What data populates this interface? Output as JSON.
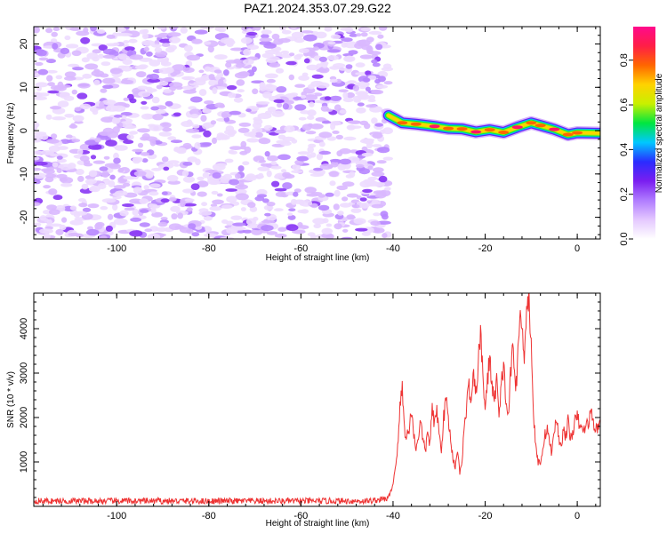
{
  "chart_data": [
    {
      "type": "heatmap",
      "title": "PAZ1.2024.353.07.29.G22",
      "xlabel": "Height of straight line (km)",
      "ylabel": "Frequency (Hz)",
      "xlim": [
        -118,
        5
      ],
      "ylim": [
        -25,
        24
      ],
      "x_ticks": [
        "-100",
        "-80",
        "-60",
        "-40",
        "-20",
        "0"
      ],
      "y_ticks": [
        "-20",
        "-10",
        "0",
        "10",
        "20"
      ],
      "colorbar": {
        "label": "Normalized spectral amplitude",
        "range": [
          0,
          0.95
        ],
        "ticks": [
          "0.0",
          "0.2",
          "0.4",
          "0.6",
          "0.8"
        ]
      },
      "colormap": [
        "#ffffff",
        "#e4c8ff",
        "#b07cff",
        "#7a1ef0",
        "#2a2cff",
        "#00c8ff",
        "#00e640",
        "#c8f000",
        "#ffd200",
        "#ff6600",
        "#ff1e46",
        "#ff0a8c"
      ],
      "noise_region": {
        "x_range": [
          -118,
          -41
        ],
        "amplitude": "0.0-0.25"
      },
      "signal_ridge": {
        "x": [
          -41,
          -38,
          -35,
          -31,
          -28,
          -25,
          -22,
          -19,
          -16,
          -13,
          -10,
          -8,
          -5,
          -2,
          0,
          5
        ],
        "frequency": [
          3.5,
          1.8,
          1.5,
          1.0,
          0.5,
          0.4,
          -0.3,
          0.2,
          -0.4,
          0.8,
          1.8,
          1.2,
          0.3,
          -0.9,
          -0.5,
          -0.6
        ],
        "peak_amplitude": 0.9
      },
      "grid": false
    },
    {
      "type": "line",
      "title": "",
      "xlabel": "Height of straight line (km)",
      "ylabel": "SNR (10 * v/v)",
      "xlim": [
        -118,
        5
      ],
      "ylim": [
        0,
        4800
      ],
      "x_ticks": [
        "-100",
        "-80",
        "-60",
        "-40",
        "-20",
        "0"
      ],
      "y_ticks": [
        "1000",
        "2000",
        "3000",
        "4000"
      ],
      "color": "#ee3333",
      "grid": false,
      "series": [
        {
          "x": [
            -118,
            -45,
            -41,
            -40,
            -39,
            -38.5,
            -38,
            -37.5,
            -37,
            -36.5,
            -36,
            -35.5,
            -35,
            -34.5,
            -34,
            -33.5,
            -33,
            -32.5,
            -32,
            -31.5,
            -31,
            -30.5,
            -30,
            -29.5,
            -29,
            -28.5,
            -28,
            -27.5,
            -27,
            -26.5,
            -26,
            -25.5,
            -25,
            -24.5,
            -24,
            -23.5,
            -23,
            -22.5,
            -22,
            -21.5,
            -21,
            -20.5,
            -20,
            -19.5,
            -19,
            -18.5,
            -18,
            -17.5,
            -17,
            -16.5,
            -16,
            -15.5,
            -15,
            -14.5,
            -14,
            -13.5,
            -13,
            -12.5,
            -12,
            -11.5,
            -11,
            -10.5,
            -10,
            -9.5,
            -9,
            -8.5,
            -8,
            -7.5,
            -7,
            -6.5,
            -6,
            -5.5,
            -5,
            -4.5,
            -4,
            -3.5,
            -3,
            -2.5,
            -2,
            -1.5,
            -1,
            -0.5,
            0,
            1,
            2,
            3,
            4,
            5
          ],
          "y": [
            120,
            120,
            180,
            500,
            1300,
            2200,
            2700,
            1700,
            1600,
            1700,
            2200,
            1600,
            1300,
            1600,
            1900,
            1500,
            1200,
            1700,
            1400,
            2200,
            1800,
            2200,
            1600,
            1300,
            2000,
            2400,
            2000,
            1500,
            1100,
            900,
            1300,
            700,
            1100,
            1800,
            2300,
            2700,
            2300,
            2900,
            2500,
            3300,
            3800,
            3000,
            2200,
            2800,
            3400,
            2700,
            2300,
            3000,
            1900,
            2700,
            3200,
            2400,
            2000,
            2900,
            3600,
            2800,
            3000,
            4400,
            3900,
            3500,
            4500,
            4800,
            3600,
            2100,
            1300,
            1000,
            1000,
            1300,
            1600,
            1800,
            1400,
            1200,
            1700,
            2000,
            1500,
            1400,
            1700,
            1600,
            1900,
            1500,
            1700,
            1900,
            2000,
            1700,
            1800,
            2100,
            1700,
            1900
          ]
        }
      ]
    }
  ]
}
